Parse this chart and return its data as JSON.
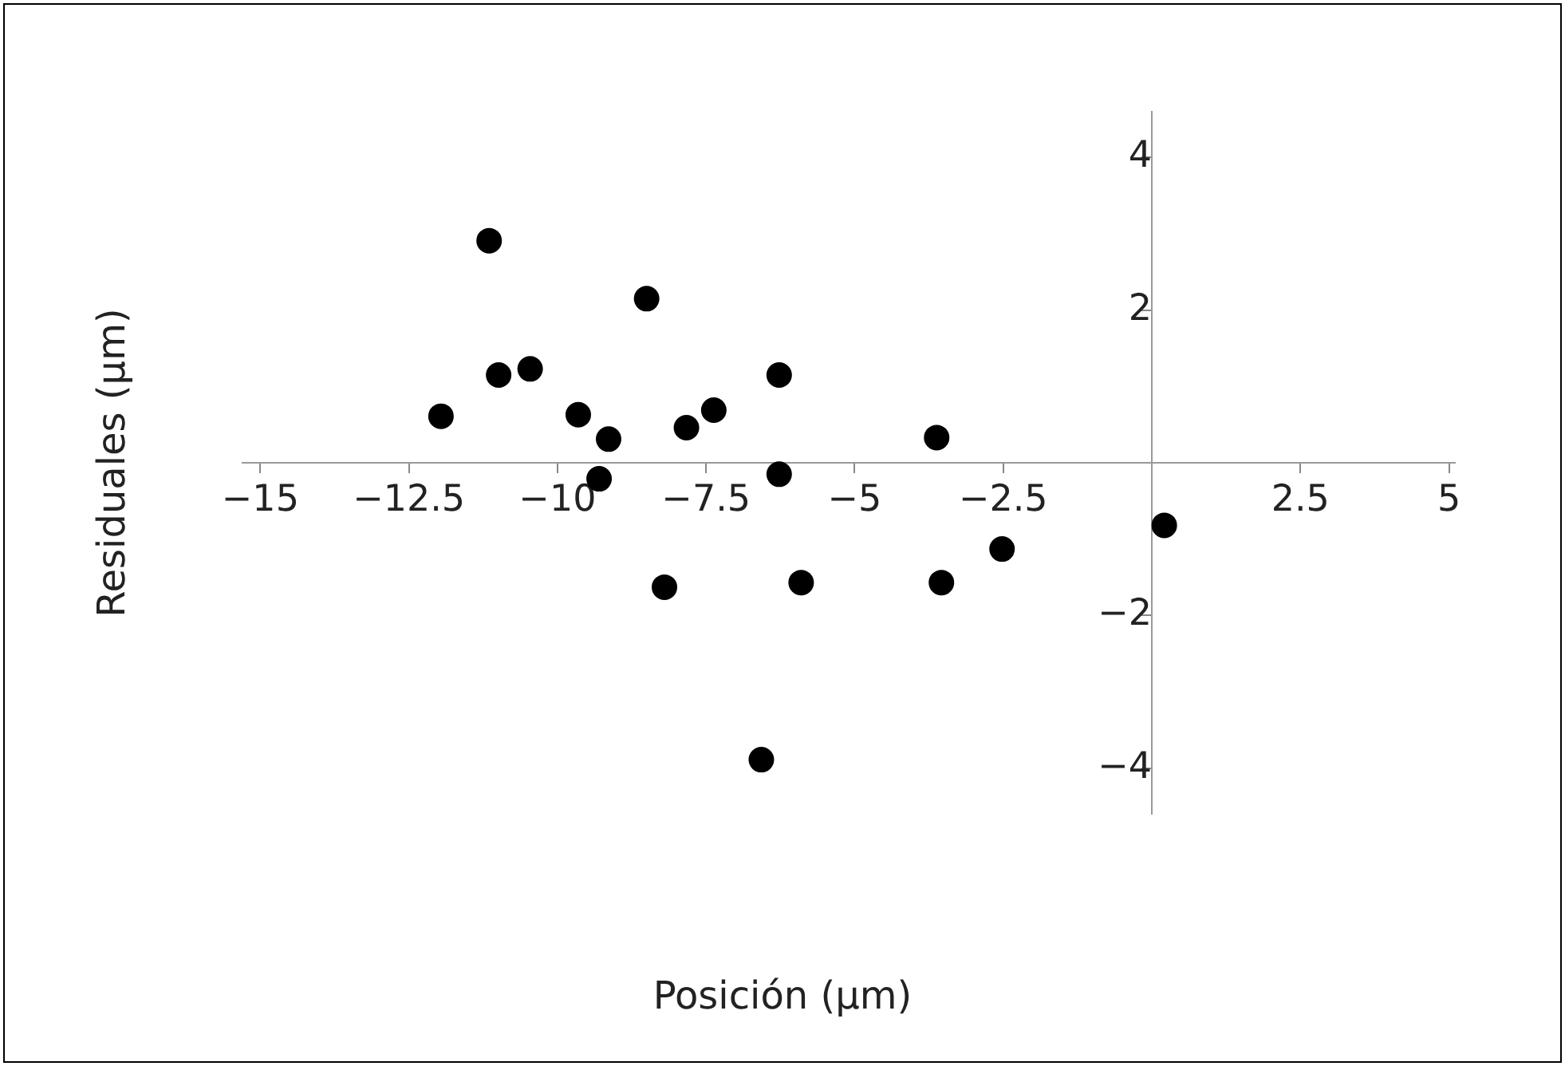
{
  "chart_data": {
    "type": "scatter",
    "xlabel": "Posición (μm)",
    "ylabel": "Residuales (μm)",
    "x": [
      -11.96,
      -11.15,
      -10.99,
      -10.46,
      -9.65,
      -9.14,
      -9.3,
      -8.5,
      -8.2,
      -7.83,
      -7.37,
      -6.57,
      -6.27,
      -6.27,
      -5.9,
      -3.62,
      -3.54,
      -2.52,
      0.21
    ],
    "series": [
      {
        "color": "#000000",
        "values": [
          0.61,
          2.91,
          1.15,
          1.23,
          0.63,
          0.31,
          -0.21,
          2.15,
          -1.63,
          0.46,
          0.69,
          -3.89,
          1.15,
          -0.15,
          -1.57,
          0.33,
          -1.57,
          -1.13,
          -0.82
        ]
      }
    ],
    "xlim": [
      -15.3,
      5.1
    ],
    "ylim": [
      -4.6,
      4.6
    ],
    "xticks": [
      -15,
      -12.5,
      -10,
      -7.5,
      -5,
      -2.5,
      2.5,
      5
    ],
    "yticks": [
      -4,
      -2,
      2,
      4
    ],
    "grid": false,
    "legend": false,
    "marker": "circle"
  }
}
